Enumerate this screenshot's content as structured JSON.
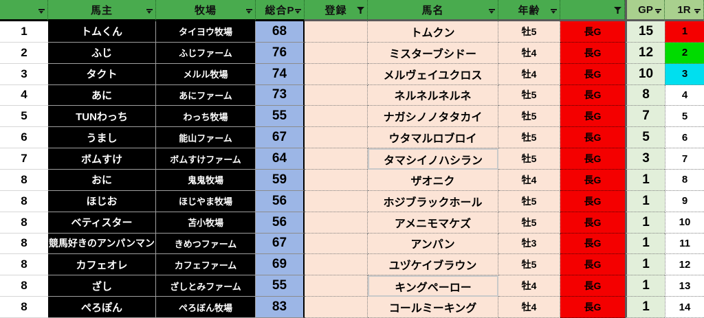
{
  "table": {
    "headers": [
      {
        "label": "",
        "icon": "filter-dropdown"
      },
      {
        "label": "馬主",
        "icon": "filter-dropdown"
      },
      {
        "label": "牧場",
        "icon": "filter-dropdown"
      },
      {
        "label": "総合P",
        "icon": "filter-dropdown"
      },
      {
        "label": "登録",
        "icon": "filter-funnel"
      },
      {
        "label": "馬名",
        "icon": "filter-dropdown"
      },
      {
        "label": "年齢",
        "icon": "filter-dropdown"
      },
      {
        "label": "",
        "icon": "filter-funnel"
      },
      {
        "label": "GP",
        "icon": "filter-dropdown"
      },
      {
        "label": "1R",
        "icon": "filter-dropdown"
      }
    ],
    "rows": [
      {
        "rank": "1",
        "owner": "トムくん",
        "farm": "タイヨウ牧場",
        "total_p": "68",
        "registration": "",
        "horse_name": "トムクン",
        "age": "牡5",
        "grade": "長G",
        "gp": "15",
        "r1": "1",
        "r1_bg": "#F40000"
      },
      {
        "rank": "2",
        "owner": "ふじ",
        "farm": "ふじファーム",
        "total_p": "76",
        "registration": "",
        "horse_name": "ミスターブシドー",
        "age": "牡4",
        "grade": "長G",
        "gp": "12",
        "r1": "2",
        "r1_bg": "#00DB00"
      },
      {
        "rank": "3",
        "owner": "タクト",
        "farm": "メルル牧場",
        "total_p": "74",
        "registration": "",
        "horse_name": "メルヴェイユクロス",
        "age": "牡4",
        "grade": "長G",
        "gp": "10",
        "r1": "3",
        "r1_bg": "#00DFEF"
      },
      {
        "rank": "4",
        "owner": "あに",
        "farm": "あにファーム",
        "total_p": "73",
        "registration": "",
        "horse_name": "ネルネルネルネ",
        "age": "牡5",
        "grade": "長G",
        "gp": "8",
        "r1": "4",
        "r1_bg": "#FFFFFF"
      },
      {
        "rank": "5",
        "owner": "TUNわっち",
        "farm": "わっち牧場",
        "total_p": "55",
        "registration": "",
        "horse_name": "ナガシノノタタカイ",
        "age": "牡5",
        "grade": "長G",
        "gp": "7",
        "r1": "5",
        "r1_bg": "#FFFFFF"
      },
      {
        "rank": "6",
        "owner": "うまし",
        "farm": "能山ファーム",
        "total_p": "67",
        "registration": "",
        "horse_name": "ウタマルロブロイ",
        "age": "牡5",
        "grade": "長G",
        "gp": "5",
        "r1": "6",
        "r1_bg": "#FFFFFF"
      },
      {
        "rank": "7",
        "owner": "ボムすけ",
        "farm": "ボムすけファーム",
        "total_p": "64",
        "registration": "",
        "horse_name": "タマシイノハシラン",
        "age": "牡5",
        "grade": "長G",
        "gp": "3",
        "r1": "7",
        "r1_bg": "#FFFFFF",
        "name_selected": true
      },
      {
        "rank": "8",
        "owner": "おに",
        "farm": "鬼鬼牧場",
        "total_p": "59",
        "registration": "",
        "horse_name": "ザオニク",
        "age": "牡4",
        "grade": "長G",
        "gp": "1",
        "r1": "8",
        "r1_bg": "#FFFFFF"
      },
      {
        "rank": "8",
        "owner": "ほじお",
        "farm": "ほじやま牧場",
        "total_p": "56",
        "registration": "",
        "horse_name": "ホジブラックホール",
        "age": "牡5",
        "grade": "長G",
        "gp": "1",
        "r1": "9",
        "r1_bg": "#FFFFFF"
      },
      {
        "rank": "8",
        "owner": "ベティスター",
        "farm": "苫小牧場",
        "total_p": "56",
        "registration": "",
        "horse_name": "アメニモマケズ",
        "age": "牡5",
        "grade": "長G",
        "gp": "1",
        "r1": "10",
        "r1_bg": "#FFFFFF"
      },
      {
        "rank": "8",
        "owner": "競馬好きのアンパンマン",
        "farm": "きめつファーム",
        "total_p": "67",
        "registration": "",
        "horse_name": "アンパン",
        "age": "牡3",
        "grade": "長G",
        "gp": "1",
        "r1": "11",
        "r1_bg": "#FFFFFF"
      },
      {
        "rank": "8",
        "owner": "カフェオレ",
        "farm": "カフェファーム",
        "total_p": "69",
        "registration": "",
        "horse_name": "ユヅケイブラウン",
        "age": "牡5",
        "grade": "長G",
        "gp": "1",
        "r1": "12",
        "r1_bg": "#FFFFFF"
      },
      {
        "rank": "8",
        "owner": "ざし",
        "farm": "ざしとみファーム",
        "total_p": "55",
        "registration": "",
        "horse_name": "キングペーロー",
        "age": "牡4",
        "grade": "長G",
        "gp": "1",
        "r1": "13",
        "r1_bg": "#FFFFFF",
        "name_selected": true
      },
      {
        "rank": "8",
        "owner": "ぺろぽん",
        "farm": "ぺろぼん牧場",
        "total_p": "83",
        "registration": "",
        "horse_name": "コールミーキング",
        "age": "牡4",
        "grade": "長G",
        "gp": "1",
        "r1": "14",
        "r1_bg": "#FFFFFF"
      }
    ]
  },
  "colors": {
    "header_green": "#49AB4E",
    "gp_header_green": "#A9D08E",
    "gp_cell_green": "#E2EFDA",
    "total_p_blue": "#9CB6E6",
    "entry_peach": "#FCE4D6",
    "grade_red": "#F40000",
    "r1_first": "#F40000",
    "r1_second": "#00DB00",
    "r1_third": "#00DFEF"
  }
}
